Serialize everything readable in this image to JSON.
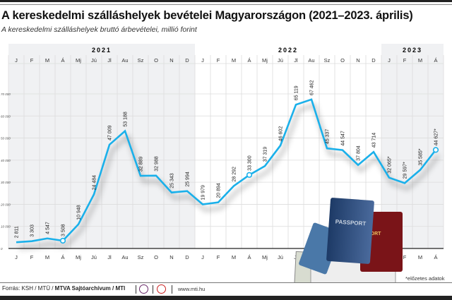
{
  "header": {
    "title": "A kereskedelmi szálláshelyek bevételei Magyarországon (2021–2023. április)",
    "subtitle": "A kereskedelmi szálláshelyek bruttó árbevételei, millió forint"
  },
  "chart_data": {
    "type": "line",
    "title": "A kereskedelmi szálláshelyek bevételei Magyarországon (2021–2023. április)",
    "subtitle": "A kereskedelmi szálláshelyek bruttó árbevételei, millió forint",
    "years": [
      {
        "label": "2021",
        "months": 12
      },
      {
        "label": "2022",
        "months": 12
      },
      {
        "label": "2023",
        "months": 4
      }
    ],
    "categories": [
      "J",
      "F",
      "M",
      "Á",
      "Mj",
      "Jú",
      "Jl",
      "Au",
      "Sz",
      "O",
      "N",
      "D",
      "J",
      "F",
      "M",
      "Á",
      "Mj",
      "Jú",
      "Jl",
      "Au",
      "Sz",
      "O",
      "N",
      "D",
      "J",
      "F",
      "M",
      "Á"
    ],
    "values": [
      2811,
      3303,
      4547,
      3508,
      10948,
      24484,
      47009,
      53188,
      32889,
      32988,
      25343,
      25994,
      19979,
      20894,
      28292,
      33300,
      37319,
      46602,
      65119,
      67462,
      45337,
      44547,
      37804,
      43714,
      32065,
      29597,
      35585,
      44627
    ],
    "labels": [
      "2 811",
      "3 303",
      "4 547",
      "3 508",
      "10 948",
      "24 484",
      "47 009",
      "53 188",
      "32 889",
      "32 988",
      "25 343",
      "25 994",
      "19 979",
      "20 894",
      "28 292",
      "33 300",
      "37 319",
      "46 602",
      "65 119",
      "67 462",
      "45 337",
      "44 547",
      "37 804",
      "43 714",
      "32 065*",
      "29 597*",
      "35 585*",
      "44 627*"
    ],
    "highlighted_points": [
      3,
      15,
      27
    ],
    "yticks": [
      "0",
      "10 000",
      "20 000",
      "30 000",
      "40 000",
      "50 000",
      "60 000",
      "70 000"
    ],
    "ylim": [
      0,
      70000
    ],
    "grid": true,
    "line_color": "#1ab0ea"
  },
  "footer": {
    "note": "*előzetes adatok",
    "source_prefix": "Forrás: KSH / MTÜ / ",
    "source_bold": "MTVA Sajtóarchívum / MTI",
    "website": "www.mti.hu"
  }
}
